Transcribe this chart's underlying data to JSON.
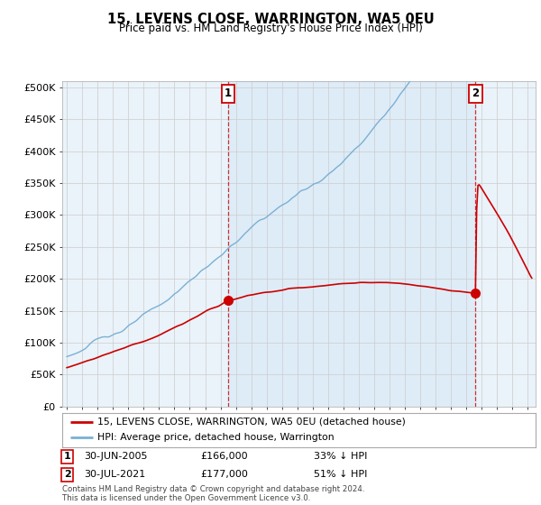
{
  "title": "15, LEVENS CLOSE, WARRINGTON, WA5 0EU",
  "subtitle": "Price paid vs. HM Land Registry's House Price Index (HPI)",
  "ylabel_ticks": [
    "£0",
    "£50K",
    "£100K",
    "£150K",
    "£200K",
    "£250K",
    "£300K",
    "£350K",
    "£400K",
    "£450K",
    "£500K"
  ],
  "ytick_values": [
    0,
    50000,
    100000,
    150000,
    200000,
    250000,
    300000,
    350000,
    400000,
    450000,
    500000
  ],
  "ylim": [
    0,
    510000
  ],
  "xlim_start": 1994.7,
  "xlim_end": 2025.5,
  "hpi_color": "#7ab0d4",
  "hpi_fill_color": "#d6e8f5",
  "price_color": "#cc0000",
  "annotation1_date": 2005.5,
  "annotation2_date": 2021.58,
  "annotation1_price": 166000,
  "annotation2_price": 177000,
  "legend_line1": "15, LEVENS CLOSE, WARRINGTON, WA5 0EU (detached house)",
  "legend_line2": "HPI: Average price, detached house, Warrington",
  "background_color": "#ffffff",
  "grid_color": "#cccccc",
  "plot_bg_color": "#eaf3fa"
}
